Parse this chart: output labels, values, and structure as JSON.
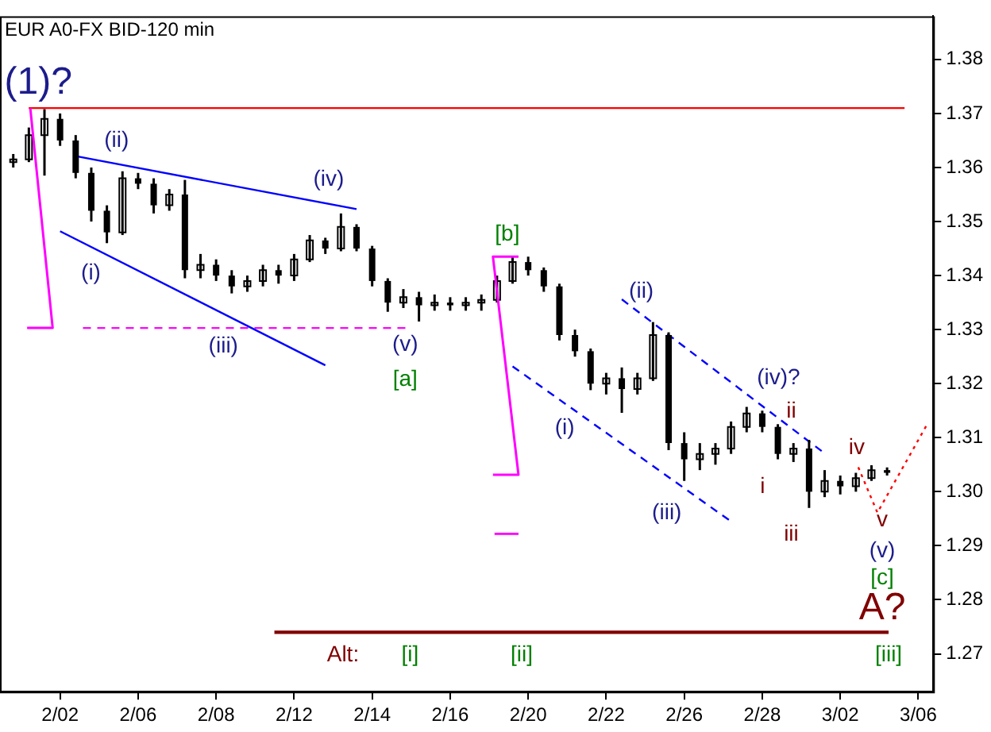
{
  "chart_data": {
    "type": "candlestick",
    "title": "EUR A0-FX BID-120 min",
    "color": "#000000",
    "categories": [
      null,
      null,
      null,
      "2/02",
      null,
      null,
      null,
      null,
      "2/06",
      null,
      null,
      null,
      null,
      "2/08",
      null,
      null,
      null,
      null,
      "2/12",
      null,
      null,
      null,
      null,
      "2/14",
      null,
      null,
      null,
      null,
      "2/16",
      null,
      null,
      null,
      null,
      "2/20",
      null,
      null,
      null,
      null,
      "2/22",
      null,
      null,
      null,
      null,
      "2/26",
      null,
      null,
      null,
      null,
      "2/28",
      null,
      null,
      null,
      null,
      "3/02",
      null,
      null,
      null,
      null,
      "3/06"
    ],
    "ohlc": [
      [
        1.361,
        1.3625,
        1.36,
        1.3615
      ],
      [
        1.3615,
        1.3674,
        1.361,
        1.366
      ],
      [
        1.366,
        1.3708,
        1.3585,
        1.369
      ],
      [
        1.369,
        1.37,
        1.364,
        1.365
      ],
      [
        1.365,
        1.366,
        1.358,
        1.359
      ],
      [
        1.359,
        1.36,
        1.35,
        1.352
      ],
      [
        1.352,
        1.353,
        1.346,
        1.348
      ],
      [
        1.348,
        1.3593,
        1.3475,
        1.358
      ],
      [
        1.358,
        1.359,
        1.356,
        1.357
      ],
      [
        1.357,
        1.358,
        1.3515,
        1.353
      ],
      [
        1.353,
        1.356,
        1.352,
        1.355
      ],
      [
        1.355,
        1.3577,
        1.3395,
        1.341
      ],
      [
        1.341,
        1.344,
        1.3395,
        1.342
      ],
      [
        1.342,
        1.343,
        1.339,
        1.34
      ],
      [
        1.34,
        1.341,
        1.3367,
        1.338
      ],
      [
        1.338,
        1.34,
        1.337,
        1.339
      ],
      [
        1.339,
        1.342,
        1.338,
        1.341
      ],
      [
        1.341,
        1.342,
        1.3385,
        1.34
      ],
      [
        1.34,
        1.344,
        1.339,
        1.343
      ],
      [
        1.343,
        1.3475,
        1.3425,
        1.3465
      ],
      [
        1.3465,
        1.347,
        1.344,
        1.345
      ],
      [
        1.345,
        1.3515,
        1.3445,
        1.349
      ],
      [
        1.349,
        1.3495,
        1.3445,
        1.345
      ],
      [
        1.345,
        1.3455,
        1.338,
        1.339
      ],
      [
        1.339,
        1.3395,
        1.3333,
        1.335
      ],
      [
        1.335,
        1.3375,
        1.334,
        1.336
      ],
      [
        1.336,
        1.337,
        1.3315,
        1.3345
      ],
      [
        1.3345,
        1.3365,
        1.3335,
        1.335
      ],
      [
        1.335,
        1.336,
        1.3335,
        1.3345
      ],
      [
        1.3345,
        1.336,
        1.3335,
        1.335
      ],
      [
        1.335,
        1.3365,
        1.3335,
        1.3355
      ],
      [
        1.3355,
        1.34,
        1.335,
        1.339
      ],
      [
        1.339,
        1.3435,
        1.3385,
        1.3425
      ],
      [
        1.3425,
        1.3435,
        1.34,
        1.341
      ],
      [
        1.341,
        1.3415,
        1.337,
        1.338
      ],
      [
        1.338,
        1.3385,
        1.328,
        1.329
      ],
      [
        1.329,
        1.33,
        1.325,
        1.326
      ],
      [
        1.326,
        1.3265,
        1.3188,
        1.32
      ],
      [
        1.32,
        1.322,
        1.318,
        1.321
      ],
      [
        1.321,
        1.323,
        1.3146,
        1.319
      ],
      [
        1.319,
        1.322,
        1.318,
        1.321
      ],
      [
        1.321,
        1.3314,
        1.3205,
        1.329
      ],
      [
        1.329,
        1.3295,
        1.3077,
        1.309
      ],
      [
        1.309,
        1.311,
        1.302,
        1.306
      ],
      [
        1.306,
        1.309,
        1.304,
        1.307
      ],
      [
        1.307,
        1.309,
        1.305,
        1.308
      ],
      [
        1.308,
        1.313,
        1.307,
        1.312
      ],
      [
        1.312,
        1.3157,
        1.311,
        1.3145
      ],
      [
        1.3145,
        1.315,
        1.311,
        1.312
      ],
      [
        1.312,
        1.3125,
        1.306,
        1.307
      ],
      [
        1.307,
        1.309,
        1.3055,
        1.308
      ],
      [
        1.308,
        1.3096,
        1.297,
        1.3
      ],
      [
        1.3,
        1.304,
        1.299,
        1.302
      ],
      [
        1.302,
        1.303,
        1.2995,
        1.301
      ],
      [
        1.301,
        1.3035,
        1.3,
        1.3025
      ],
      [
        1.3025,
        1.3049,
        1.302,
        1.304
      ],
      [
        1.304,
        1.3045,
        1.303,
        1.3035
      ],
      null,
      null
    ],
    "ref_lines": [
      {
        "axis": "y",
        "value": 1.371,
        "color": "#ff0000"
      },
      {
        "axis": "y",
        "value": 1.274,
        "color": "#800000"
      },
      {
        "axis": "y",
        "value": 1.3303,
        "color": "#ff00ff",
        "line_style": "dashed"
      }
    ],
    "series": [
      {
        "type": "line",
        "color": "#0000ff",
        "values": [
          null,
          null,
          null,
          null,
          1.3621,
          null,
          null,
          null,
          null,
          null,
          null,
          null,
          null,
          null,
          null,
          null,
          null,
          null,
          null,
          null,
          null,
          null,
          1.3523,
          null,
          null,
          null,
          null,
          null,
          null,
          null,
          null,
          null,
          null,
          null,
          null,
          null,
          null,
          null,
          null,
          null,
          null,
          null,
          null,
          null,
          null,
          null,
          null,
          null,
          null,
          null,
          null,
          null,
          null,
          null,
          null,
          null,
          null,
          null,
          null
        ]
      },
      {
        "type": "line",
        "color": "#0000ff",
        "values": [
          null,
          null,
          null,
          1.3482,
          null,
          null,
          null,
          null,
          null,
          null,
          null,
          null,
          null,
          null,
          null,
          null,
          null,
          null,
          null,
          null,
          1.3234,
          null,
          null,
          null,
          null,
          null,
          null,
          null,
          null,
          null,
          null,
          null,
          null,
          null,
          null,
          null,
          null,
          null,
          null,
          null,
          null,
          null,
          null,
          null,
          null,
          null,
          null,
          null,
          null,
          null,
          null,
          null,
          null,
          null,
          null,
          null,
          null,
          null,
          null
        ]
      },
      {
        "type": "line",
        "color": "#0000ff",
        "line_style": "dashed",
        "values": [
          null,
          null,
          null,
          null,
          null,
          null,
          null,
          null,
          null,
          null,
          null,
          null,
          null,
          null,
          null,
          null,
          null,
          null,
          null,
          null,
          null,
          null,
          null,
          null,
          null,
          null,
          null,
          null,
          null,
          null,
          null,
          null,
          null,
          null,
          null,
          null,
          null,
          null,
          null,
          1.3356,
          null,
          null,
          null,
          null,
          null,
          null,
          null,
          null,
          null,
          null,
          null,
          null,
          1.3071,
          null,
          null,
          null,
          null,
          null,
          null
        ]
      },
      {
        "type": "line",
        "color": "#0000ff",
        "line_style": "dashed",
        "values": [
          null,
          null,
          null,
          null,
          null,
          null,
          null,
          null,
          null,
          null,
          null,
          null,
          null,
          null,
          null,
          null,
          null,
          null,
          null,
          null,
          null,
          null,
          null,
          null,
          null,
          null,
          null,
          null,
          null,
          null,
          null,
          null,
          1.3232,
          null,
          null,
          null,
          null,
          null,
          null,
          null,
          null,
          null,
          null,
          null,
          null,
          null,
          1.2945,
          null,
          null,
          null,
          null,
          null,
          null,
          null,
          null,
          null,
          null,
          null,
          null
        ]
      }
    ],
    "annotations": [
      "(1)?",
      "(ii)",
      "(iv)",
      "(i)",
      "(iii)",
      "(v)",
      "[a]",
      "[b]",
      "(i)",
      {
        "text": "(ii)",
        "y": 1.3314
      },
      "(iii)",
      "(iv)?",
      "ii",
      "i",
      "iii",
      "iv",
      "v",
      "(v)",
      "[c]",
      "A?",
      "Alt:",
      "[i]",
      "[ii]",
      "[iii]"
    ],
    "ylim": [
      1.263,
      1.388
    ],
    "yticks": [
      1.27,
      1.28,
      1.29,
      {
        "value": 1.3,
        "label": "1.30"
      },
      1.31,
      1.32,
      1.33,
      1.34,
      1.35,
      1.36,
      1.37,
      1.38
    ],
    "grid": false
  }
}
